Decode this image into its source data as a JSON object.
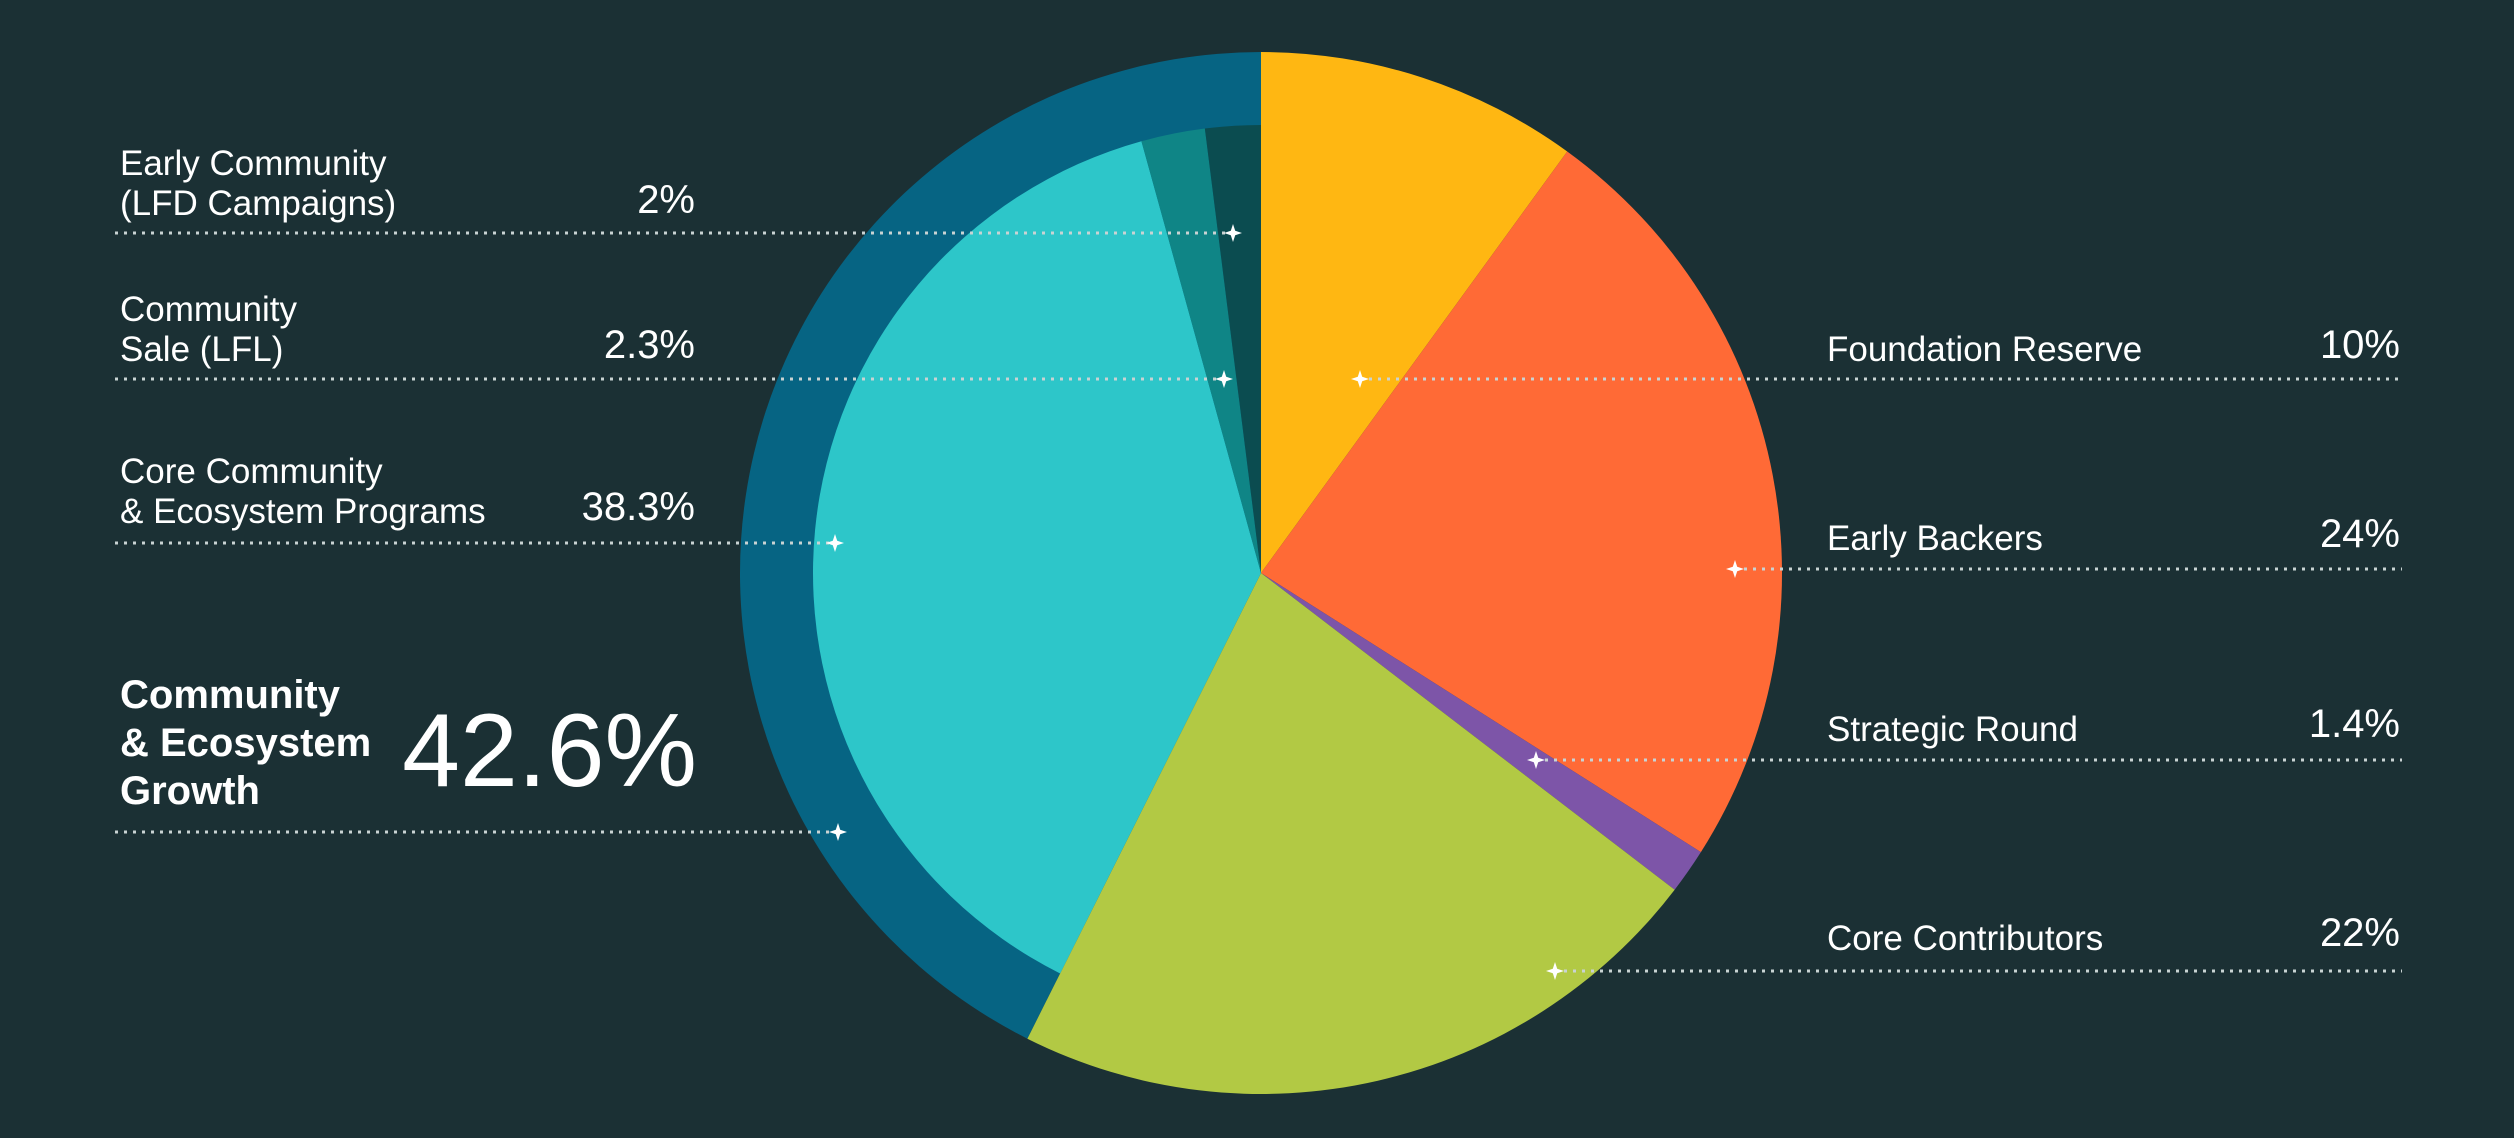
{
  "colors": {
    "background": "#1b3034",
    "outer_ring": "#066483"
  },
  "chart_data": {
    "type": "pie",
    "title": "",
    "unit": "%",
    "slices": [
      {
        "label": "Foundation Reserve",
        "value": 10,
        "value_label": "10%",
        "color": "#ffb712"
      },
      {
        "label": "Early Backers",
        "value": 24,
        "value_label": "24%",
        "color": "#ff6a36"
      },
      {
        "label": "Strategic Round",
        "value": 1.4,
        "value_label": "1.4%",
        "color": "#7d55a8"
      },
      {
        "label": "Core Contributors",
        "value": 22,
        "value_label": "22%",
        "color": "#b2c944"
      },
      {
        "label": "Core Community & Ecosystem Programs",
        "value": 38.3,
        "value_label": "38.3%",
        "color": "#2dc6c9"
      },
      {
        "label": "Community Sale (LFL)",
        "value": 2.3,
        "value_label": "2.3%",
        "color": "#0f8586"
      },
      {
        "label": "Early Community (LFD Campaigns)",
        "value": 2,
        "value_label": "2%",
        "color": "#0b4c50"
      }
    ],
    "group": {
      "label": "Community & Ecosystem Growth",
      "value": 42.6,
      "value_label": "42.6%",
      "members": [
        "Core Community & Ecosystem Programs",
        "Community Sale (LFL)",
        "Early Community (LFD Campaigns)"
      ]
    },
    "left_labels": [
      {
        "lines": [
          "Early Community",
          "(LFD Campaigns)"
        ],
        "pct": "2%"
      },
      {
        "lines": [
          "Community",
          "Sale (LFL)"
        ],
        "pct": "2.3%"
      },
      {
        "lines": [
          "Core Community",
          "& Ecosystem Programs"
        ],
        "pct": "38.3%"
      }
    ],
    "group_label_lines": [
      "Community",
      "& Ecosystem",
      "Growth"
    ],
    "right_labels": [
      {
        "text": "Foundation Reserve",
        "pct": "10%"
      },
      {
        "text": "Early Backers",
        "pct": "24%"
      },
      {
        "text": "Strategic Round",
        "pct": "1.4%"
      },
      {
        "text": "Core Contributors",
        "pct": "22%"
      }
    ]
  }
}
